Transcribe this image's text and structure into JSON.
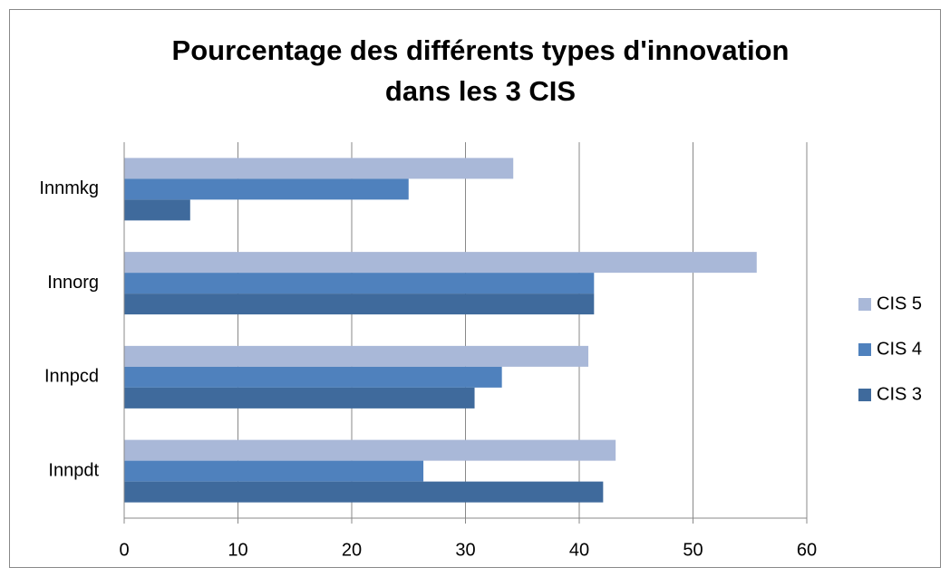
{
  "chart_data": {
    "type": "bar",
    "orientation": "horizontal",
    "title": [
      "Pourcentage des différents types d'innovation",
      "dans les 3 CIS"
    ],
    "categories": [
      "Innmkg",
      "Innorg",
      "Innpcd",
      "Innpdt"
    ],
    "series": [
      {
        "name": "CIS 5",
        "color": "#a9b8d8",
        "values": [
          34.2,
          55.6,
          40.8,
          43.2
        ]
      },
      {
        "name": "CIS 4",
        "color": "#4f81bd",
        "values": [
          25,
          41.3,
          33.2,
          26.3
        ]
      },
      {
        "name": "CIS 3",
        "color": "#3f6a9c",
        "values": [
          5.8,
          41.3,
          30.8,
          42.1
        ]
      }
    ],
    "xlim": [
      0,
      60
    ],
    "xticks": [
      0,
      10,
      20,
      30,
      40,
      50,
      60
    ],
    "grid": true,
    "legend": "right"
  }
}
